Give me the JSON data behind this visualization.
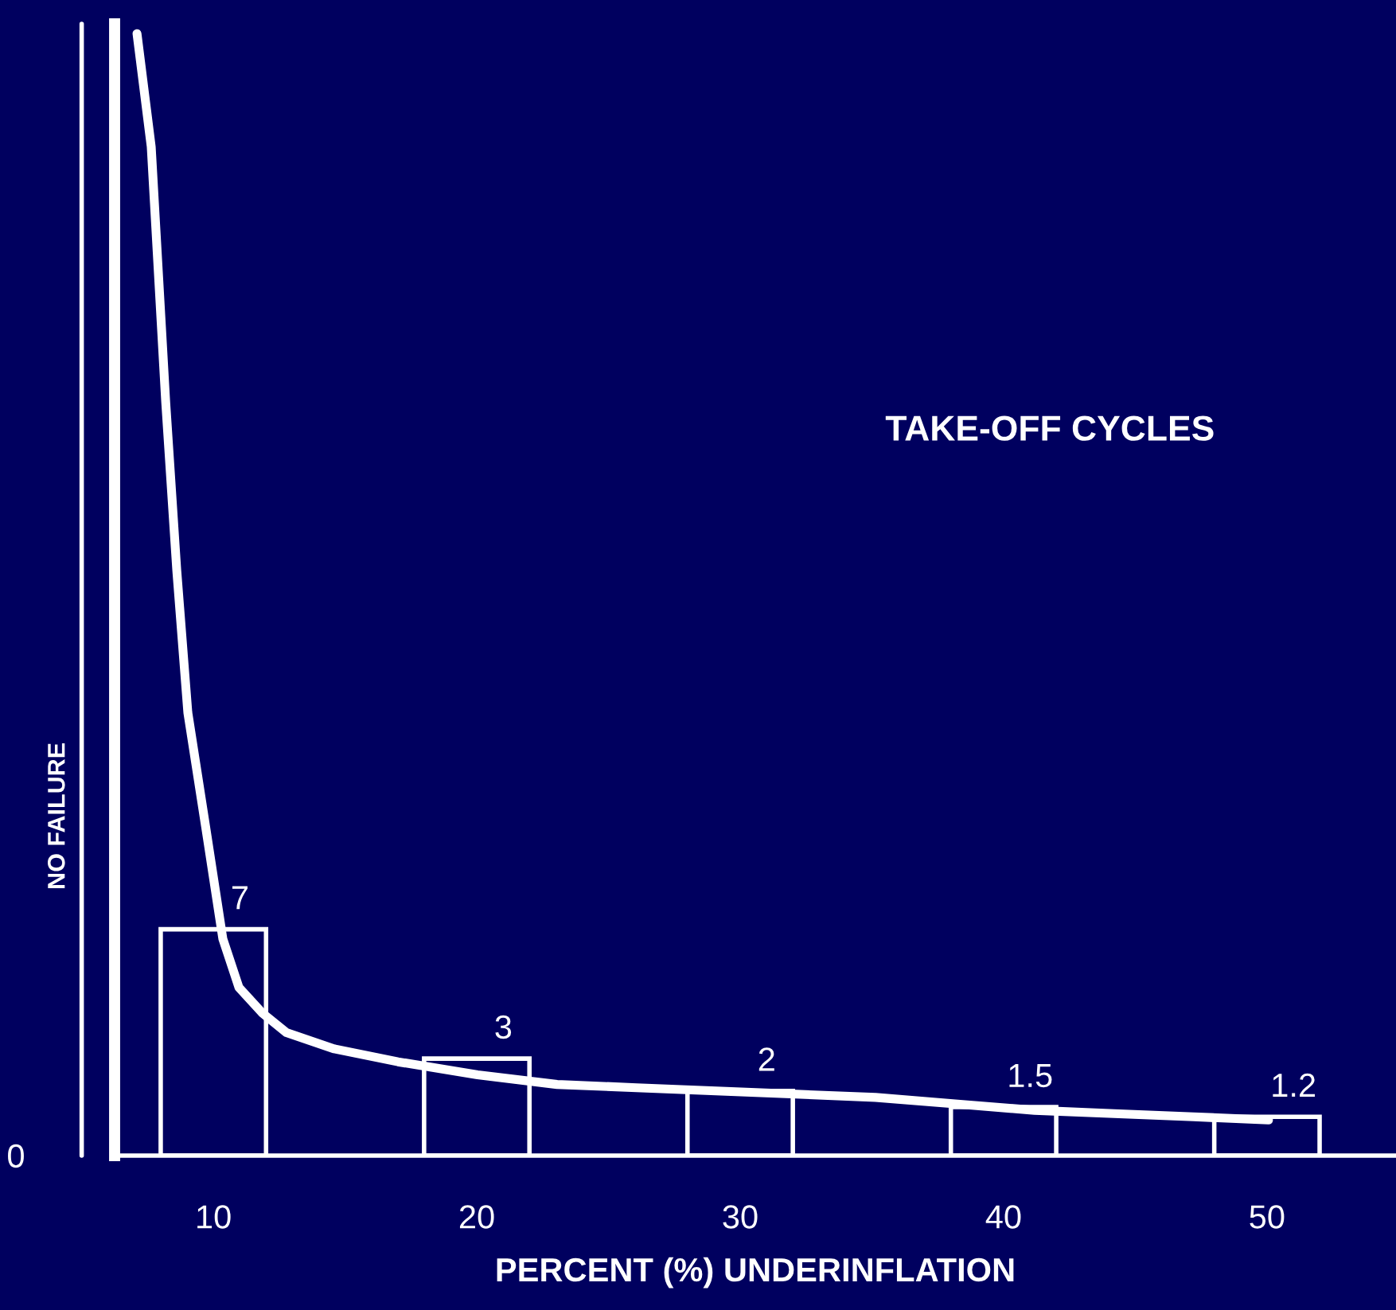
{
  "chart_data": {
    "type": "bar",
    "xlabel": "PERCENT (%) UNDERINFLATION",
    "ylabel": "NO FAILURE",
    "annotations": [
      "TAKE-OFF CYCLES",
      "0"
    ],
    "xlim": [
      6.25,
      54.9
    ],
    "xticks": [
      10,
      20,
      30,
      40,
      50
    ],
    "ylim": [
      0,
      35
    ],
    "grid": false,
    "legend": false,
    "ref_lines": [
      {
        "axis": "x",
        "value": 5,
        "color": "#ffffff"
      }
    ],
    "series": [
      {
        "color": "#ffffff",
        "x": [
          10,
          20,
          30,
          40,
          50
        ],
        "values": [
          7,
          3,
          2,
          1.5,
          1.2
        ],
        "value_labels": [
          "7",
          "3",
          "2",
          "1.5",
          "1.2"
        ]
      },
      {
        "type": "line",
        "color": "#ffffff",
        "marker": "none",
        "line_style": "solid",
        "x": [
          7.1,
          7.64,
          8.19,
          8.61,
          9.03,
          9.7,
          10.36,
          10.97,
          11.87,
          12.78,
          14.59,
          17.01,
          20.03,
          23.05,
          26.07,
          29.09,
          32.11,
          35.14,
          38.16,
          41.18,
          44.2,
          47.22,
          50.06
        ],
        "values": [
          34.7,
          31.2,
          23.3,
          18.1,
          13.7,
          10.2,
          6.7,
          5.2,
          4.4,
          3.8,
          3.3,
          2.9,
          2.5,
          2.2,
          2.1,
          2.0,
          1.9,
          1.8,
          1.6,
          1.4,
          1.3,
          1.2,
          1.1
        ]
      }
    ]
  }
}
